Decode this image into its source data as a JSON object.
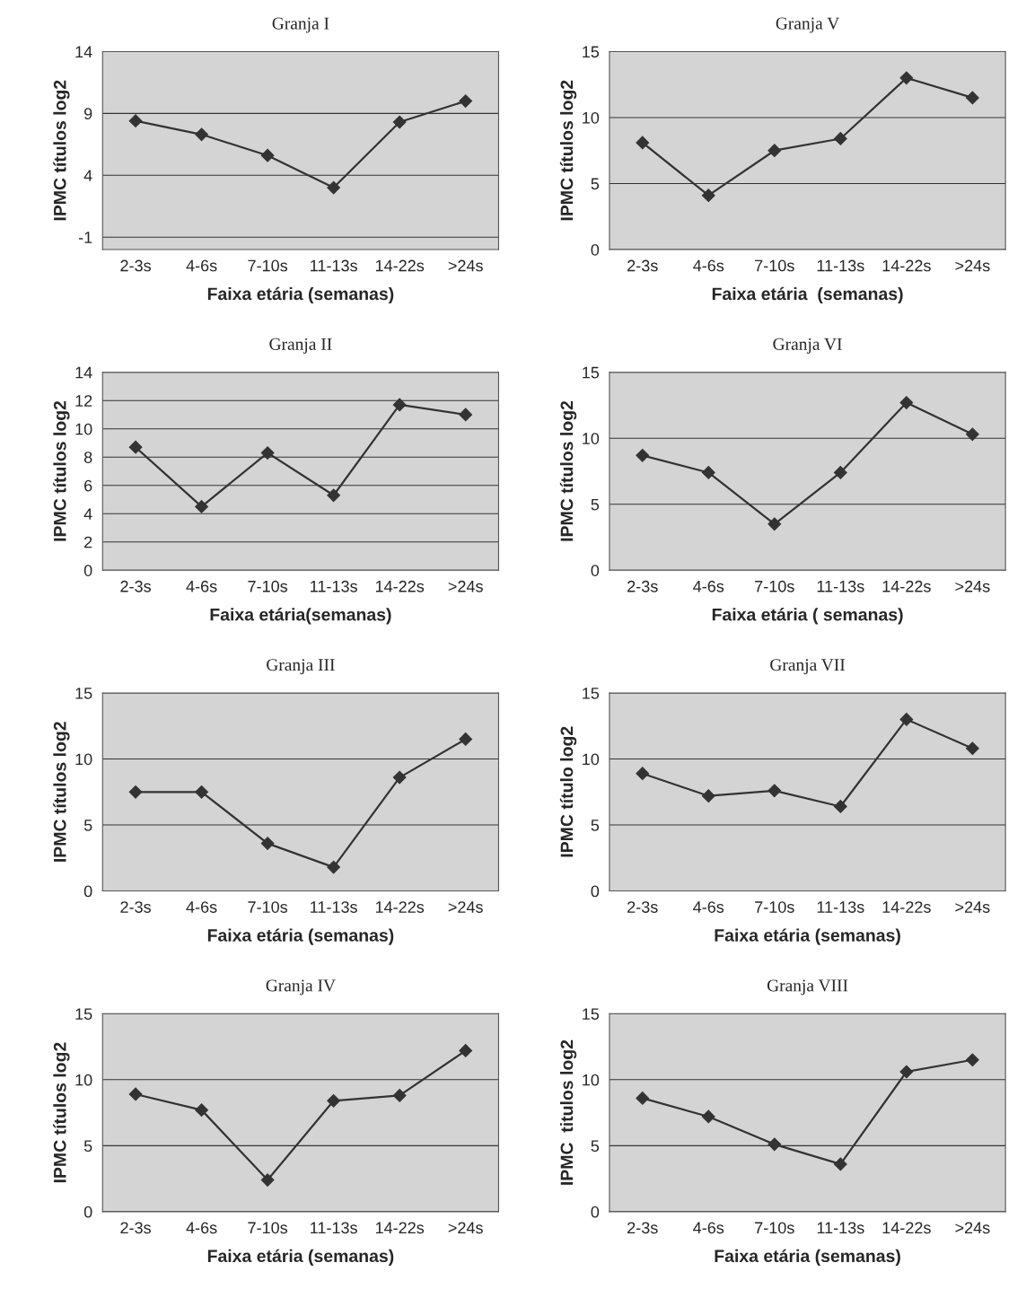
{
  "chart_data": [
    {
      "type": "line",
      "title": "Granja I",
      "xlabel": "Faixa etária (semanas)",
      "ylabel": "IPMC títulos log2",
      "categories": [
        "2-3s",
        "4-6s",
        "7-10s",
        "11-13s",
        "14-22s",
        ">24s"
      ],
      "series": [
        {
          "color": "#333333",
          "values": [
            8.4,
            7.3,
            5.6,
            3.0,
            8.3,
            10.0
          ]
        }
      ],
      "ylim": [
        -2,
        14
      ],
      "yticks": [
        -1,
        4,
        9,
        14
      ],
      "grid": "y",
      "marker": "diamond",
      "line_style": "solid"
    },
    {
      "type": "line",
      "title": "Granja V",
      "xlabel": "Faixa etária  (semanas)",
      "ylabel": "IPMC títulos log2",
      "categories": [
        "2-3s",
        "4-6s",
        "7-10s",
        "11-13s",
        "14-22s",
        ">24s"
      ],
      "series": [
        {
          "color": "#333333",
          "values": [
            8.1,
            4.1,
            7.5,
            8.4,
            13.0,
            11.5
          ]
        }
      ],
      "ylim": [
        0,
        15
      ],
      "yticks": [
        0,
        5,
        10,
        15
      ],
      "grid": "y",
      "marker": "diamond",
      "line_style": "solid"
    },
    {
      "type": "line",
      "title": "Granja II",
      "xlabel": "Faixa etária(semanas)",
      "ylabel": "IPMC títulos log2",
      "categories": [
        "2-3s",
        "4-6s",
        "7-10s",
        "11-13s",
        "14-22s",
        ">24s"
      ],
      "series": [
        {
          "color": "#333333",
          "values": [
            8.7,
            4.5,
            8.3,
            5.3,
            11.7,
            11.0
          ]
        }
      ],
      "ylim": [
        0,
        14
      ],
      "yticks": [
        0,
        2,
        4,
        6,
        8,
        10,
        12,
        14
      ],
      "grid": "y",
      "marker": "diamond",
      "line_style": "solid"
    },
    {
      "type": "line",
      "title": "Granja VI",
      "xlabel": "Faixa etária ( semanas)",
      "ylabel": "IPMC títulos log2",
      "categories": [
        "2-3s",
        "4-6s",
        "7-10s",
        "11-13s",
        "14-22s",
        ">24s"
      ],
      "series": [
        {
          "color": "#333333",
          "values": [
            8.7,
            7.4,
            3.5,
            7.4,
            12.7,
            10.3
          ]
        }
      ],
      "ylim": [
        0,
        15
      ],
      "yticks": [
        0,
        5,
        10,
        15
      ],
      "grid": "y",
      "marker": "diamond",
      "line_style": "solid"
    },
    {
      "type": "line",
      "title": "Granja III",
      "xlabel": "Faixa etária (semanas)",
      "ylabel": "IPMC títulos log2",
      "categories": [
        "2-3s",
        "4-6s",
        "7-10s",
        "11-13s",
        "14-22s",
        ">24s"
      ],
      "series": [
        {
          "color": "#333333",
          "values": [
            7.5,
            7.5,
            3.6,
            1.8,
            8.6,
            11.5
          ]
        }
      ],
      "ylim": [
        0,
        15
      ],
      "yticks": [
        0,
        5,
        10,
        15
      ],
      "grid": "y",
      "marker": "diamond",
      "line_style": "solid"
    },
    {
      "type": "line",
      "title": "Granja VII",
      "xlabel": "Faixa etária (semanas)",
      "ylabel": "IPMC título log2",
      "categories": [
        "2-3s",
        "4-6s",
        "7-10s",
        "11-13s",
        "14-22s",
        ">24s"
      ],
      "series": [
        {
          "color": "#333333",
          "values": [
            8.9,
            7.2,
            7.6,
            6.4,
            13.0,
            10.8
          ]
        }
      ],
      "ylim": [
        0,
        15
      ],
      "yticks": [
        0,
        5,
        10,
        15
      ],
      "grid": "y",
      "marker": "diamond",
      "line_style": "solid"
    },
    {
      "type": "line",
      "title": "Granja IV",
      "xlabel": "Faixa etária (semanas)",
      "ylabel": "IPMC títulos log2",
      "categories": [
        "2-3s",
        "4-6s",
        "7-10s",
        "11-13s",
        "14-22s",
        ">24s"
      ],
      "series": [
        {
          "color": "#333333",
          "values": [
            8.9,
            7.7,
            2.4,
            8.4,
            8.8,
            12.2
          ]
        }
      ],
      "ylim": [
        0,
        15
      ],
      "yticks": [
        0,
        5,
        10,
        15
      ],
      "grid": "y",
      "marker": "diamond",
      "line_style": "solid"
    },
    {
      "type": "line",
      "title": "Granja VIII",
      "xlabel": "Faixa etária (semanas)",
      "ylabel": "IPMC  titulos log2",
      "categories": [
        "2-3s",
        "4-6s",
        "7-10s",
        "11-13s",
        "14-22s",
        ">24s"
      ],
      "series": [
        {
          "color": "#333333",
          "values": [
            8.6,
            7.2,
            5.1,
            3.6,
            10.6,
            11.5
          ]
        }
      ],
      "ylim": [
        0,
        15
      ],
      "yticks": [
        0,
        5,
        10,
        15
      ],
      "grid": "y",
      "marker": "diamond",
      "line_style": "solid"
    }
  ]
}
